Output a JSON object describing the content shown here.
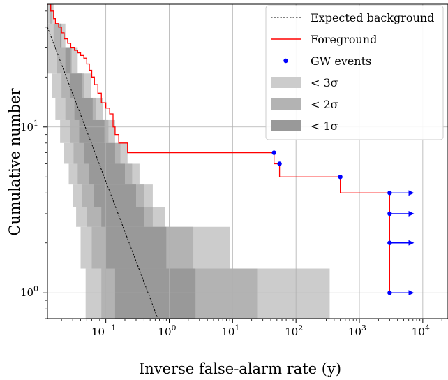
{
  "chart_data": {
    "type": "line",
    "xlabel": "Inverse false-alarm rate (y)",
    "ylabel": "Cumulative number",
    "x_scale": "log",
    "y_scale": "log",
    "xlim": [
      0.012,
      25000
    ],
    "ylim": [
      0.7,
      55
    ],
    "grid": true,
    "legend_position": "top-right",
    "x_ticks": [
      {
        "value": 0.1,
        "base": "10",
        "exp": "−1"
      },
      {
        "value": 1,
        "base": "10",
        "exp": "0"
      },
      {
        "value": 10,
        "base": "10",
        "exp": "1"
      },
      {
        "value": 100,
        "base": "10",
        "exp": "2"
      },
      {
        "value": 1000,
        "base": "10",
        "exp": "3"
      },
      {
        "value": 10000,
        "base": "10",
        "exp": "4"
      }
    ],
    "y_ticks": [
      {
        "value": 1,
        "base": "10",
        "exp": "0"
      },
      {
        "value": 10,
        "base": "10",
        "exp": "1"
      }
    ],
    "legend": [
      {
        "label": "Expected background",
        "kind": "dashed-line",
        "color": "#000000"
      },
      {
        "label": "Foreground",
        "kind": "line",
        "color": "#ff0000"
      },
      {
        "label": "GW events",
        "kind": "point",
        "color": "#0000ff"
      },
      {
        "label": "< 3σ",
        "kind": "patch",
        "color": "#cccccc"
      },
      {
        "label": "< 2σ",
        "kind": "patch",
        "color": "#b3b3b3"
      },
      {
        "label": "< 1σ",
        "kind": "patch",
        "color": "#999999"
      }
    ],
    "series": [
      {
        "name": "Expected background",
        "style": "dashed",
        "color": "#000000",
        "x": [
          0.012,
          0.66
        ],
        "y": [
          40,
          0.7
        ]
      },
      {
        "name": "Foreground",
        "style": "step",
        "color": "#ff0000",
        "points": [
          [
            0.012,
            55
          ],
          [
            0.0135,
            50
          ],
          [
            0.015,
            45
          ],
          [
            0.016,
            42
          ],
          [
            0.018,
            40
          ],
          [
            0.02,
            37
          ],
          [
            0.022,
            34
          ],
          [
            0.025,
            32
          ],
          [
            0.028,
            30
          ],
          [
            0.032,
            29
          ],
          [
            0.036,
            28
          ],
          [
            0.04,
            27
          ],
          [
            0.045,
            26
          ],
          [
            0.05,
            24
          ],
          [
            0.055,
            22
          ],
          [
            0.06,
            20
          ],
          [
            0.066,
            18
          ],
          [
            0.075,
            16
          ],
          [
            0.085,
            14
          ],
          [
            0.1,
            13
          ],
          [
            0.115,
            12
          ],
          [
            0.13,
            10
          ],
          [
            0.14,
            9
          ],
          [
            0.16,
            8
          ],
          [
            0.22,
            7
          ],
          [
            45,
            7
          ],
          [
            45,
            6
          ],
          [
            55,
            6
          ],
          [
            55,
            5
          ],
          [
            500,
            5
          ],
          [
            500,
            4
          ],
          [
            3000,
            4
          ],
          [
            3000,
            1
          ]
        ]
      },
      {
        "name": "GW events",
        "style": "points",
        "color": "#0000ff",
        "points": [
          [
            45,
            7
          ],
          [
            55,
            6
          ],
          [
            500,
            5
          ]
        ]
      },
      {
        "name": "GW events (lower limits)",
        "style": "arrows",
        "color": "#0000ff",
        "x_start": 3000,
        "x_end": 7000,
        "y": [
          4,
          3,
          2,
          1
        ]
      }
    ],
    "bands": [
      {
        "label": "< 3σ",
        "color": "#cccccc",
        "steps": [
          [
            1.4,
            0.048,
            340
          ],
          [
            2.5,
            0.04,
            9.0
          ],
          [
            3.3,
            0.034,
            0.85
          ],
          [
            4.5,
            0.03,
            0.55
          ],
          [
            6.0,
            0.026,
            0.34
          ],
          [
            8.0,
            0.022,
            0.22
          ],
          [
            11,
            0.019,
            0.14
          ],
          [
            15,
            0.016,
            0.09
          ],
          [
            21,
            0.014,
            0.058
          ],
          [
            30,
            0.012,
            0.036
          ],
          [
            42,
            0.012,
            0.023
          ],
          [
            55,
            0.012,
            0.015
          ]
        ]
      },
      {
        "label": "< 2σ",
        "color": "#b3b3b3",
        "steps": [
          [
            1.4,
            0.085,
            25
          ],
          [
            2.5,
            0.06,
            2.4
          ],
          [
            3.3,
            0.05,
            0.55
          ],
          [
            4.5,
            0.042,
            0.4
          ],
          [
            6.0,
            0.036,
            0.26
          ],
          [
            8.0,
            0.031,
            0.17
          ],
          [
            11,
            0.027,
            0.11
          ],
          [
            15,
            0.023,
            0.07
          ],
          [
            21,
            0.02,
            0.045
          ],
          [
            30,
            0.017,
            0.029
          ],
          [
            42,
            0.015,
            0.019
          ],
          [
            55,
            0.013,
            0.014
          ]
        ]
      },
      {
        "label": "< 1σ",
        "color": "#999999",
        "steps": [
          [
            1.4,
            0.14,
            2.6
          ],
          [
            2.5,
            0.1,
            0.9
          ],
          [
            3.3,
            0.085,
            0.4
          ],
          [
            4.5,
            0.065,
            0.3
          ],
          [
            6.0,
            0.055,
            0.2
          ],
          [
            8.0,
            0.045,
            0.14
          ],
          [
            11,
            0.038,
            0.095
          ],
          [
            15,
            0.032,
            0.062
          ],
          [
            21,
            0.027,
            0.042
          ],
          [
            30,
            0.023,
            0.028
          ],
          [
            42,
            0.019,
            0.02
          ],
          [
            55,
            0.016,
            0.015
          ]
        ]
      }
    ]
  }
}
